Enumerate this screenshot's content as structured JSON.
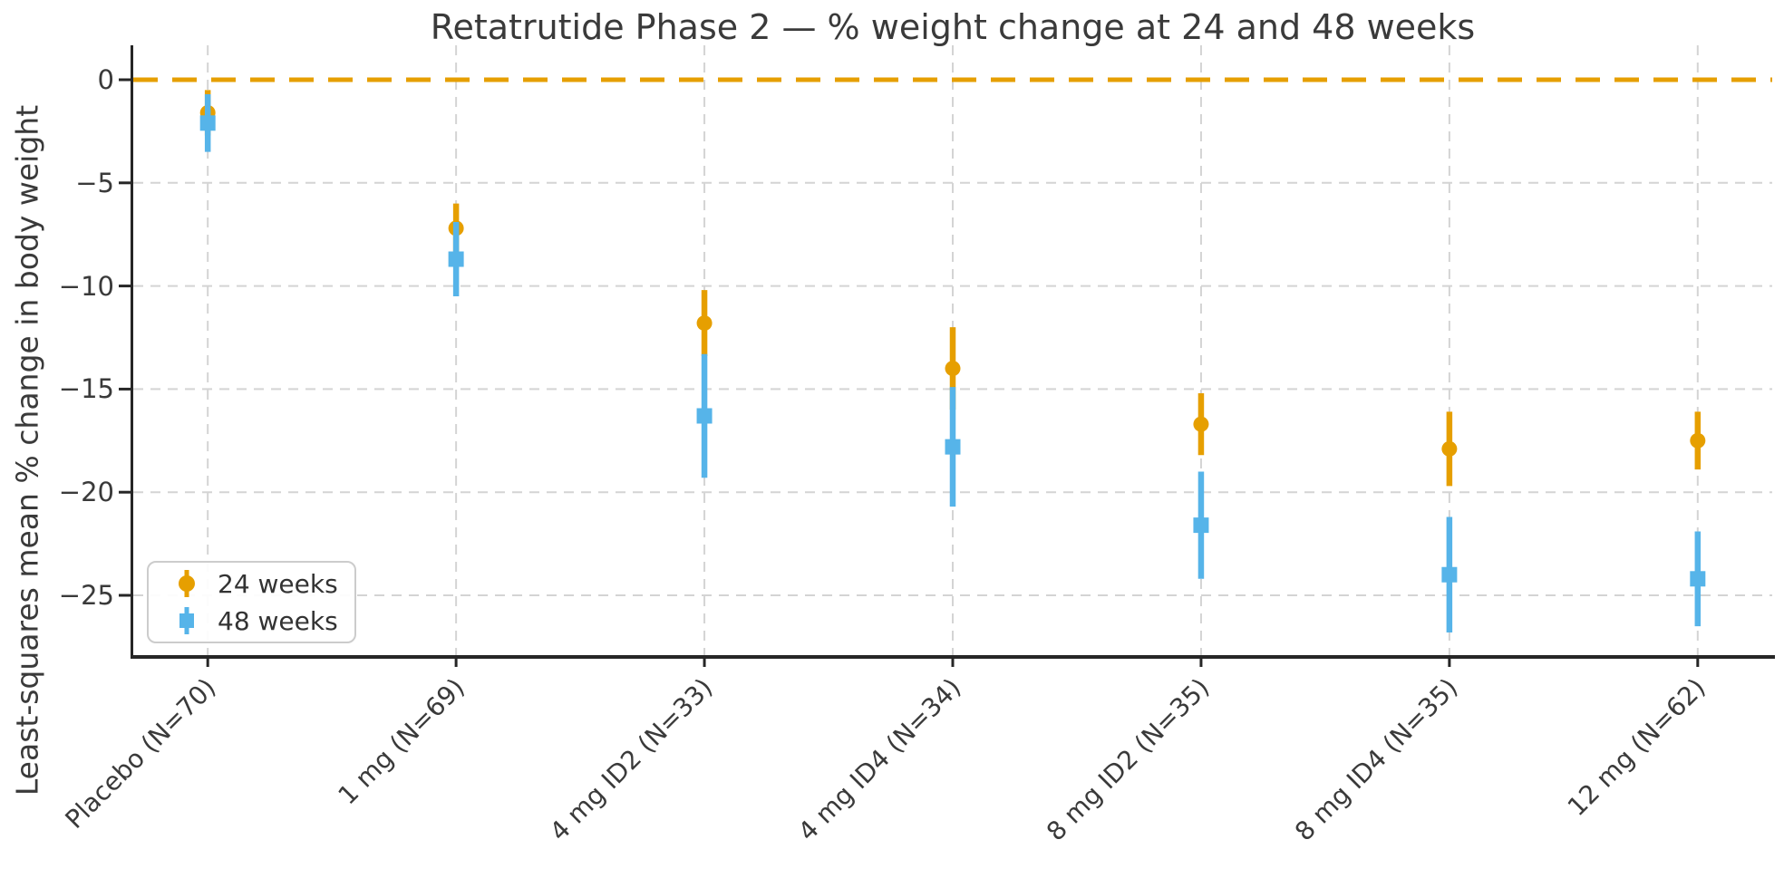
{
  "title": "Retatrutide Phase 2 — % weight change at 24 and 48 weeks",
  "ylabel": "Least-squares mean % change in body weight",
  "chart_data": {
    "type": "scatter",
    "subtype": "errorbar",
    "title": "Retatrutide Phase 2 — % weight change at 24 and 48 weeks",
    "xlabel": "",
    "ylabel": "Least-squares mean % change in body weight",
    "categories": [
      "Placebo (N=70)",
      "1 mg (N=69)",
      "4 mg ID2 (N=33)",
      "4 mg ID4 (N=34)",
      "8 mg ID2 (N=35)",
      "8 mg ID4 (N=35)",
      "12 mg (N=62)"
    ],
    "series": [
      {
        "name": "24 weeks",
        "marker": "circle",
        "color": "#E69F00",
        "values": [
          -1.6,
          -7.2,
          -11.8,
          -14.0,
          -16.7,
          -17.9,
          -17.5
        ],
        "errors": [
          1.1,
          1.2,
          1.6,
          2.0,
          1.5,
          1.8,
          1.4
        ]
      },
      {
        "name": "48 weeks",
        "marker": "square",
        "color": "#56B4E9",
        "values": [
          -2.1,
          -8.7,
          -16.3,
          -17.8,
          -21.6,
          -24.0,
          -24.2
        ],
        "errors": [
          1.4,
          1.8,
          3.0,
          2.9,
          2.6,
          2.8,
          2.3
        ]
      }
    ],
    "yticks": [
      0,
      -5,
      -10,
      -15,
      -20,
      -25
    ],
    "ytick_labels": [
      "0",
      "−5",
      "−10",
      "−15",
      "−20",
      "−25"
    ],
    "ylim": [
      -27.9,
      1.67
    ],
    "zero_line": {
      "value": 0,
      "color": "#E69F00",
      "style": "dashed"
    },
    "grid": true,
    "grid_color": "#d4d4d4",
    "legend_position": "lower left"
  }
}
